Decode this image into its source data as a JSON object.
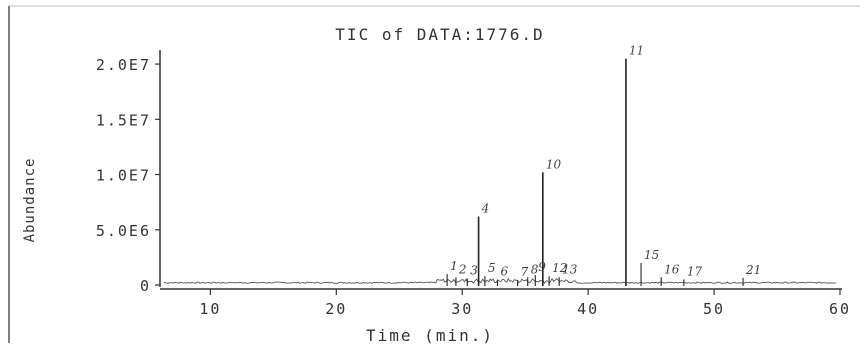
{
  "chart_data": {
    "type": "line",
    "title": "TIC of DATA:1776.D",
    "xlabel": "Time (min.)",
    "ylabel": "Abundance",
    "xlim": [
      6,
      60
    ],
    "ylim": [
      0,
      22000000
    ],
    "x_ticks": [
      10,
      20,
      30,
      40,
      50,
      60
    ],
    "x_tick_labels": [
      "10",
      "20",
      "30",
      "40",
      "50",
      "60"
    ],
    "y_ticks": [
      0,
      5000000,
      10000000,
      15000000,
      20000000
    ],
    "y_tick_labels": [
      "0",
      "5.0E6",
      "1.0E7",
      "1.5E7",
      "2.0E7"
    ],
    "peaks": [
      {
        "label": "1",
        "x": 28.8,
        "y": 1000000
      },
      {
        "label": "2",
        "x": 29.5,
        "y": 700000
      },
      {
        "label": "3",
        "x": 30.4,
        "y": 600000
      },
      {
        "label": "4",
        "x": 31.3,
        "y": 6200000
      },
      {
        "label": "5",
        "x": 31.8,
        "y": 800000
      },
      {
        "label": "6",
        "x": 32.8,
        "y": 500000
      },
      {
        "label": "7",
        "x": 34.4,
        "y": 450000
      },
      {
        "label": "8",
        "x": 35.2,
        "y": 700000
      },
      {
        "label": "9",
        "x": 35.8,
        "y": 900000
      },
      {
        "label": "10",
        "x": 36.4,
        "y": 10200000
      },
      {
        "label": "11",
        "x": 43.0,
        "y": 20500000
      },
      {
        "label": "12",
        "x": 36.9,
        "y": 800000
      },
      {
        "label": "13",
        "x": 37.7,
        "y": 700000
      },
      {
        "label": "15",
        "x": 44.2,
        "y": 2000000
      },
      {
        "label": "16",
        "x": 45.8,
        "y": 700000
      },
      {
        "label": "17",
        "x": 47.6,
        "y": 500000
      },
      {
        "label": "21",
        "x": 52.3,
        "y": 650000
      }
    ]
  }
}
